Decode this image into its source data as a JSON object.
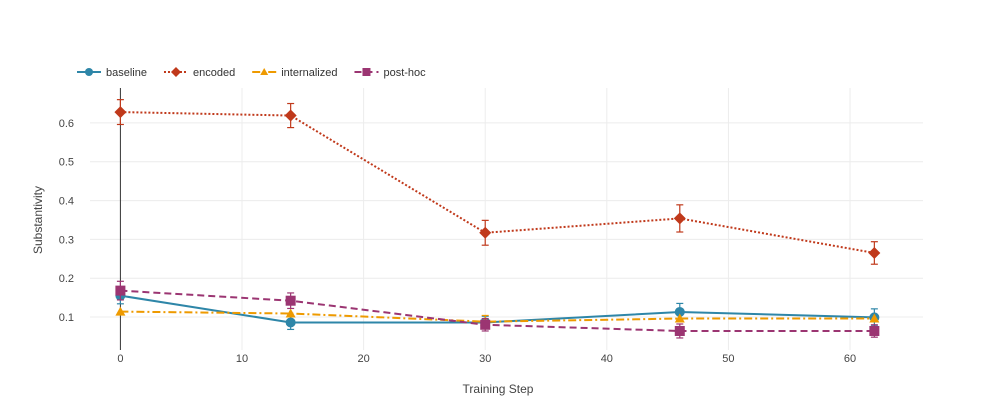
{
  "chart_data": {
    "type": "line",
    "title": "",
    "xlabel": "Training Step",
    "ylabel": "Substantivity",
    "xlim": [
      -2.5,
      66
    ],
    "ylim": [
      0.015,
      0.69
    ],
    "xticks": [
      0,
      10,
      20,
      30,
      40,
      50,
      60
    ],
    "yticks": [
      0.1,
      0.2,
      0.3,
      0.4,
      0.5,
      0.6
    ],
    "grid": true,
    "legend_position": "top-left",
    "x": [
      0,
      14,
      30,
      46,
      62
    ],
    "series": [
      {
        "name": "baseline",
        "color": "#2e86a8",
        "dash": "solid",
        "marker": "circle",
        "values": [
          0.155,
          0.086,
          0.086,
          0.113,
          0.099
        ],
        "errors": [
          0.021,
          0.018,
          0.016,
          0.022,
          0.022
        ]
      },
      {
        "name": "encoded",
        "color": "#c0391b",
        "dash": "dotted",
        "marker": "diamond",
        "values": [
          0.628,
          0.619,
          0.317,
          0.354,
          0.265
        ],
        "errors": [
          0.032,
          0.031,
          0.032,
          0.035,
          0.029
        ]
      },
      {
        "name": "internalized",
        "color": "#ee9a00",
        "dash": "dashdot",
        "marker": "triangle",
        "values": [
          0.114,
          0.109,
          0.088,
          0.096,
          0.096
        ],
        "errors": [
          0.0,
          0.0,
          0.016,
          0.0,
          0.0
        ]
      },
      {
        "name": "post-hoc",
        "color": "#9b3572",
        "dash": "dashed",
        "marker": "square",
        "values": [
          0.168,
          0.142,
          0.08,
          0.064,
          0.064
        ],
        "errors": [
          0.024,
          0.02,
          0.016,
          0.018,
          0.016
        ]
      }
    ]
  }
}
